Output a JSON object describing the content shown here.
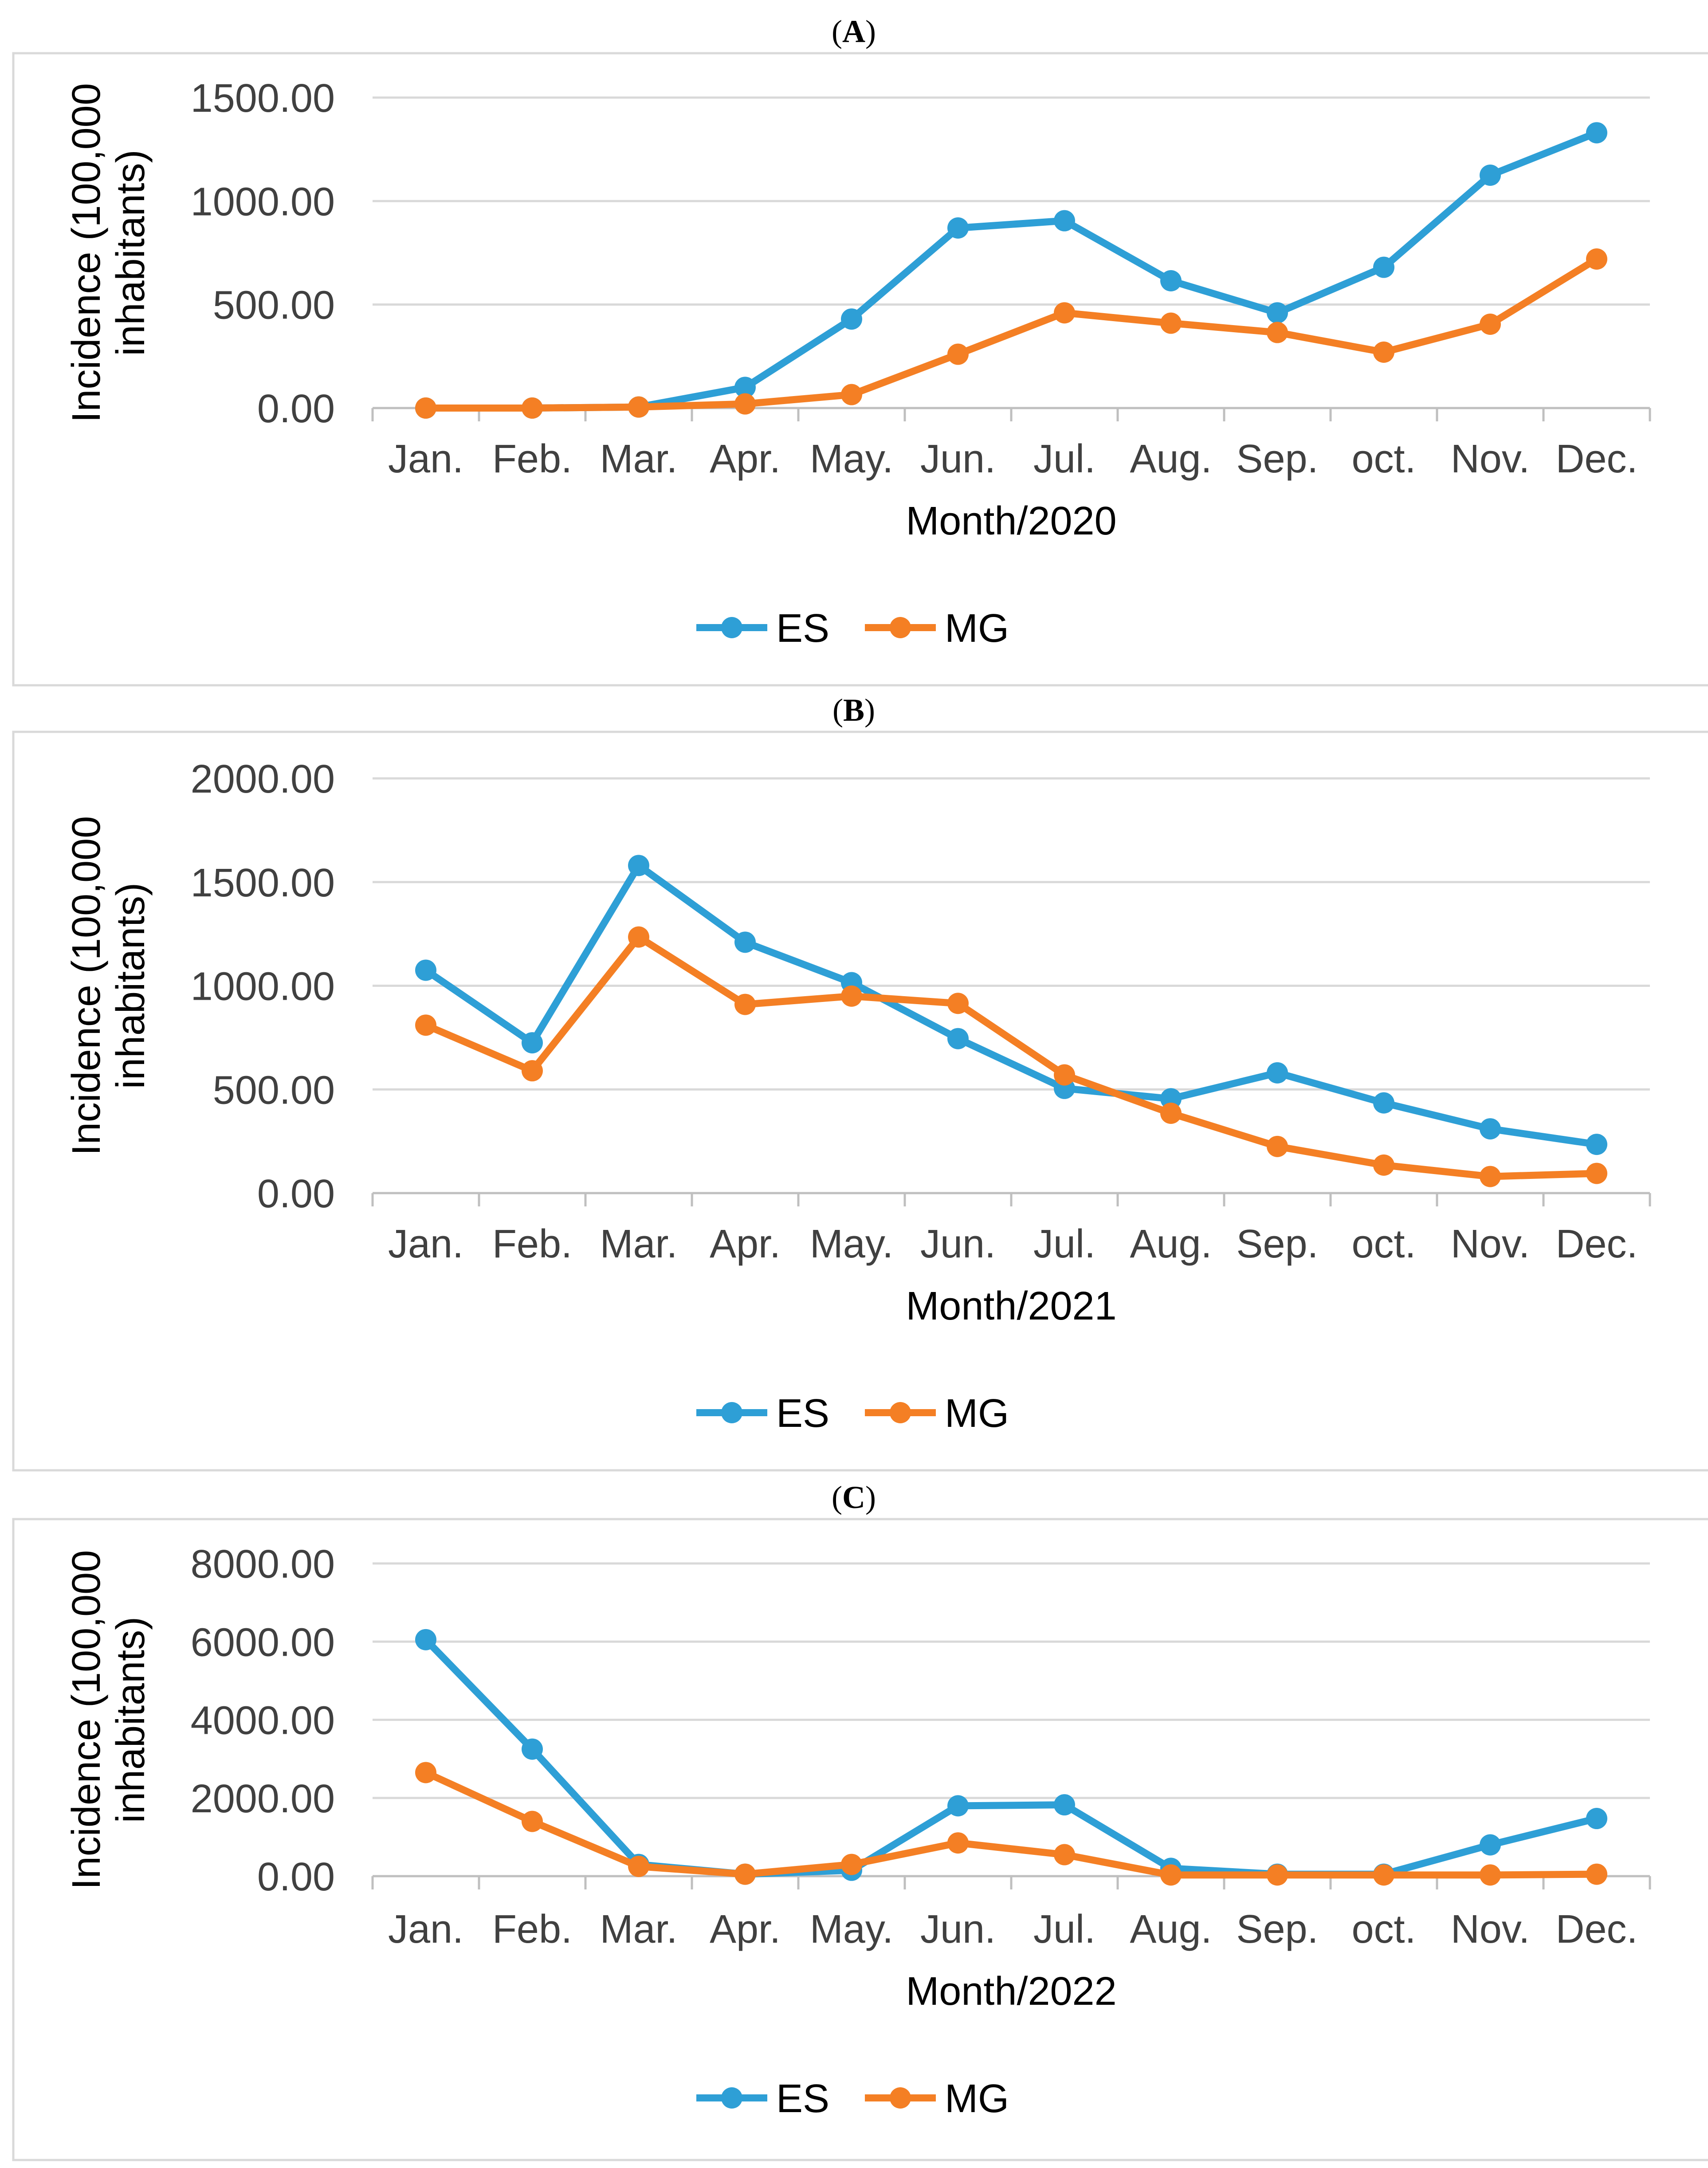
{
  "colors": {
    "ES": "#2e9fd6",
    "MG": "#f47f24",
    "grid": "#d9d9d9",
    "text": "#404040"
  },
  "chart_data": [
    {
      "type": "line",
      "panel": "A",
      "title": "",
      "xlabel": "Month/2020",
      "ylabel_lines": [
        "Incidence (100,000",
        "inhabitants)"
      ],
      "ylim": [
        0,
        1500
      ],
      "yticks": [
        "0.00",
        "500.00",
        "1000.00",
        "1500.00"
      ],
      "categories": [
        "Jan.",
        "Feb.",
        "Mar.",
        "Apr.",
        "May.",
        "Jun.",
        "Jul.",
        "Aug.",
        "Sep.",
        "oct.",
        "Nov.",
        "Dec."
      ],
      "series": [
        {
          "name": "ES",
          "values": [
            0,
            0,
            5,
            100,
            430,
            870,
            905,
            615,
            460,
            680,
            1125,
            1330
          ]
        },
        {
          "name": "MG",
          "values": [
            0,
            0,
            5,
            20,
            65,
            260,
            460,
            410,
            365,
            270,
            405,
            720
          ]
        }
      ],
      "legend": [
        "ES",
        "MG"
      ],
      "legend_position": "bottom"
    },
    {
      "type": "line",
      "panel": "B",
      "title": "",
      "xlabel": "Month/2021",
      "ylabel_lines": [
        "Incidence (100,000",
        "inhabitants)"
      ],
      "ylim": [
        0,
        2000
      ],
      "yticks": [
        "0.00",
        "500.00",
        "1000.00",
        "1500.00",
        "2000.00"
      ],
      "categories": [
        "Jan.",
        "Feb.",
        "Mar.",
        "Apr.",
        "May.",
        "Jun.",
        "Jul.",
        "Aug.",
        "Sep.",
        "oct.",
        "Nov.",
        "Dec."
      ],
      "series": [
        {
          "name": "ES",
          "values": [
            1075,
            725,
            1580,
            1210,
            1015,
            745,
            505,
            455,
            580,
            435,
            310,
            235
          ]
        },
        {
          "name": "MG",
          "values": [
            810,
            590,
            1235,
            910,
            950,
            915,
            570,
            385,
            225,
            135,
            80,
            95
          ]
        }
      ],
      "legend": [
        "ES",
        "MG"
      ],
      "legend_position": "bottom"
    },
    {
      "type": "line",
      "panel": "C",
      "title": "",
      "xlabel": "Month/2022",
      "ylabel_lines": [
        "Incidence (100,000",
        "inhabitants)"
      ],
      "ylim": [
        0,
        8000
      ],
      "yticks": [
        "0.00",
        "2000.00",
        "4000.00",
        "6000.00",
        "8000.00"
      ],
      "categories": [
        "Jan.",
        "Feb.",
        "Mar.",
        "Apr.",
        "May.",
        "Jun.",
        "Jul.",
        "Aug.",
        "Sep.",
        "oct.",
        "Nov.",
        "Dec."
      ],
      "series": [
        {
          "name": "ES",
          "values": [
            6050,
            3250,
            300,
            50,
            150,
            1800,
            1825,
            200,
            50,
            50,
            800,
            1475
          ]
        },
        {
          "name": "MG",
          "values": [
            2650,
            1400,
            250,
            50,
            300,
            850,
            550,
            30,
            30,
            30,
            30,
            50
          ]
        }
      ],
      "legend": [
        "ES",
        "MG"
      ],
      "legend_position": "bottom"
    }
  ]
}
